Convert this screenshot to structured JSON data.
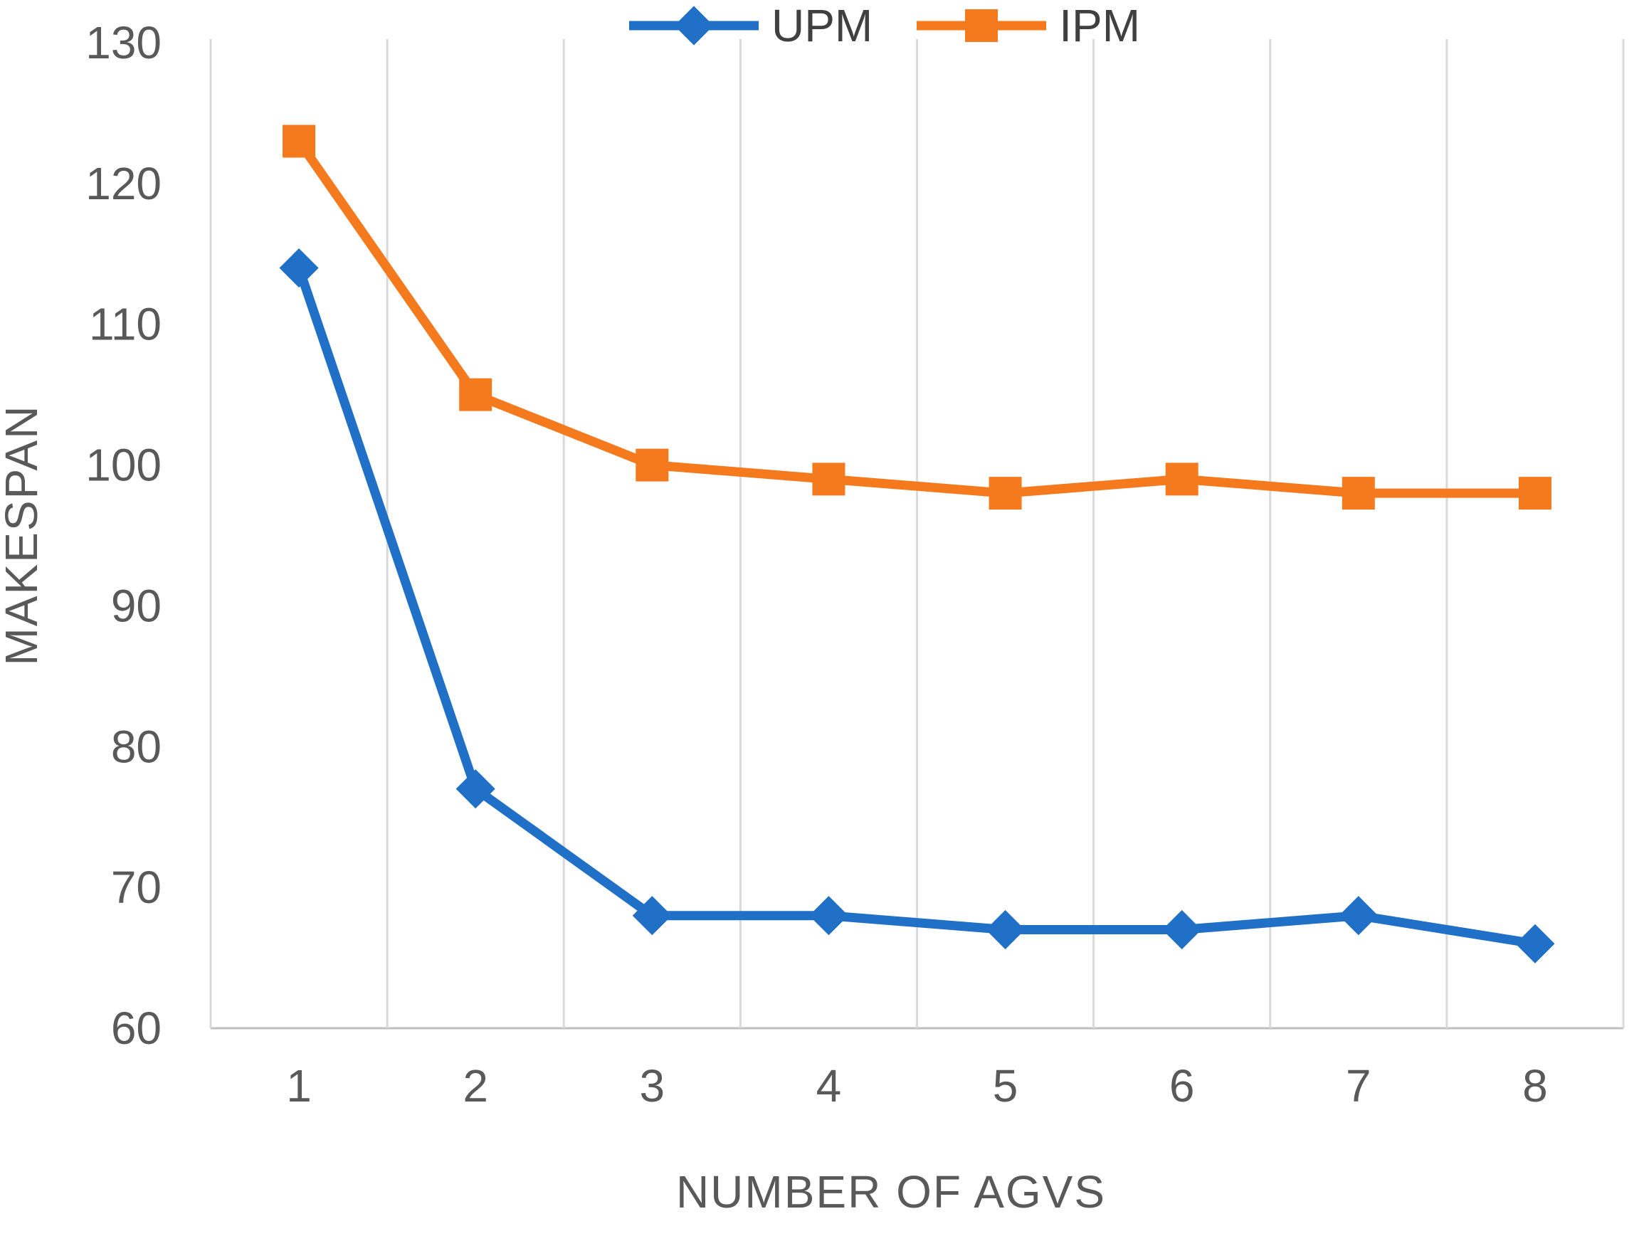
{
  "chart_data": {
    "type": "line",
    "categories": [
      "1",
      "2",
      "3",
      "4",
      "5",
      "6",
      "7",
      "8"
    ],
    "series": [
      {
        "name": "UPM",
        "values": [
          114,
          77,
          68,
          68,
          67,
          67,
          68,
          66
        ],
        "color": "#2170C8",
        "marker": "diamond"
      },
      {
        "name": "IPM",
        "values": [
          123,
          105,
          100,
          99,
          98,
          99,
          98,
          98
        ],
        "color": "#F5791D",
        "marker": "square"
      }
    ],
    "xlabel": "NUMBER OF AGVS",
    "ylabel": "MAKESPAN",
    "ylim": [
      60,
      130
    ],
    "ytick_step": 10,
    "grid": "vertical-only",
    "legend_position": "top-center"
  },
  "colors": {
    "background": "#FFFFFF",
    "grid_line": "#D9D9D9",
    "axis_line": "#BFBFBF",
    "tick_text": "#595959",
    "legend_text": "#404040",
    "series_upm": "#2170C8",
    "series_ipm": "#F5791D"
  }
}
